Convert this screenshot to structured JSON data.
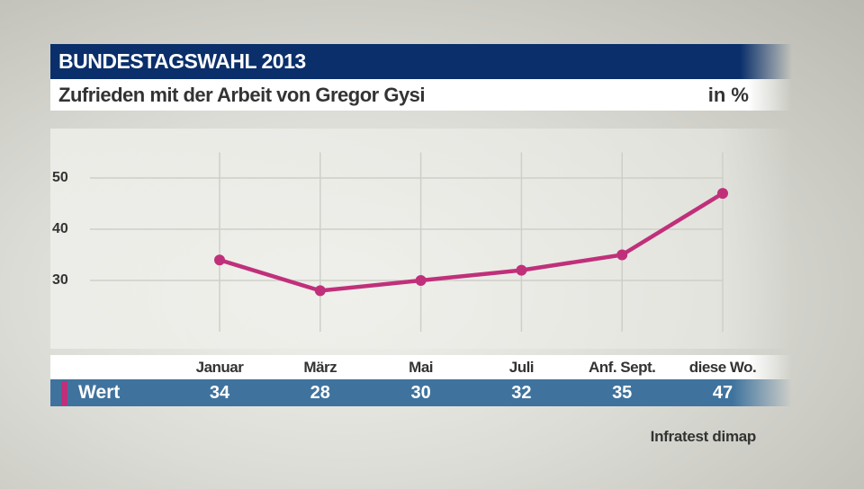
{
  "header": {
    "title": "BUNDESTAGSWAHL 2013",
    "subtitle": "Zufrieden mit der Arbeit von Gregor Gysi",
    "unit": "in %"
  },
  "source": "Infratest dimap",
  "chart_data": {
    "type": "line",
    "title": "Zufrieden mit der Arbeit von Gregor Gysi",
    "categories": [
      "Januar",
      "März",
      "Mai",
      "Juli",
      "Anf. Sept.",
      "diese Wo."
    ],
    "series": [
      {
        "name": "Wert",
        "values": [
          34,
          28,
          30,
          32,
          35,
          47
        ],
        "color": "#c0307a"
      }
    ],
    "yticks": [
      30,
      40,
      50
    ],
    "ylim": [
      20,
      55
    ],
    "grid": true,
    "table_label": "Wert"
  }
}
